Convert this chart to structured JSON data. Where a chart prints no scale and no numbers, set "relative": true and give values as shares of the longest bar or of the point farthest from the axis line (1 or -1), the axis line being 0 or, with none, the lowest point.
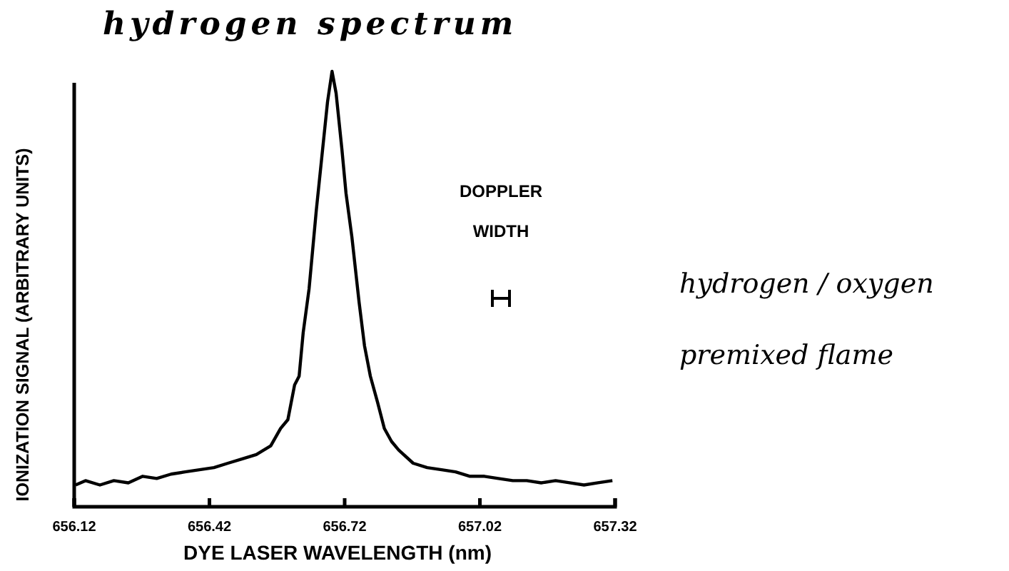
{
  "chart_data": {
    "type": "line",
    "title": "hydrogen spectrum",
    "xlabel": "DYE LASER WAVELENGTH (nm)",
    "ylabel": "IONIZATION SIGNAL (ARBITRARY UNITS)",
    "annotations": [
      "DOPPLER WIDTH",
      "hydrogen / oxygen premixed flame"
    ],
    "relative": true,
    "xlim": [
      656.12,
      657.32
    ],
    "xticks": [
      656.12,
      656.42,
      656.72,
      657.02,
      657.32
    ],
    "x": [
      656.123,
      656.145,
      656.177,
      656.208,
      656.24,
      656.272,
      656.303,
      656.335,
      656.366,
      656.398,
      656.43,
      656.461,
      656.493,
      656.524,
      656.556,
      656.578,
      656.594,
      656.609,
      656.619,
      656.628,
      656.641,
      656.657,
      656.669,
      656.682,
      656.692,
      656.701,
      656.714,
      656.723,
      656.736,
      656.752,
      656.764,
      656.777,
      656.793,
      656.808,
      656.824,
      656.84,
      656.872,
      656.903,
      656.935,
      656.966,
      656.998,
      657.03,
      657.061,
      657.093,
      657.124,
      657.156,
      657.188,
      657.219,
      657.251,
      657.282,
      657.314
    ],
    "series": [
      {
        "color": "#000000",
        "values": [
          0.05,
          0.06,
          0.05,
          0.06,
          0.055,
          0.07,
          0.065,
          0.075,
          0.08,
          0.085,
          0.09,
          0.1,
          0.11,
          0.12,
          0.14,
          0.18,
          0.2,
          0.28,
          0.3,
          0.4,
          0.5,
          0.68,
          0.8,
          0.93,
          1.0,
          0.95,
          0.82,
          0.72,
          0.62,
          0.47,
          0.37,
          0.3,
          0.24,
          0.18,
          0.15,
          0.13,
          0.1,
          0.09,
          0.085,
          0.08,
          0.07,
          0.07,
          0.065,
          0.06,
          0.06,
          0.055,
          0.06,
          0.055,
          0.05,
          0.055,
          0.06
        ]
      }
    ],
    "grid": false,
    "marker": "none",
    "line_style": "solid"
  }
}
